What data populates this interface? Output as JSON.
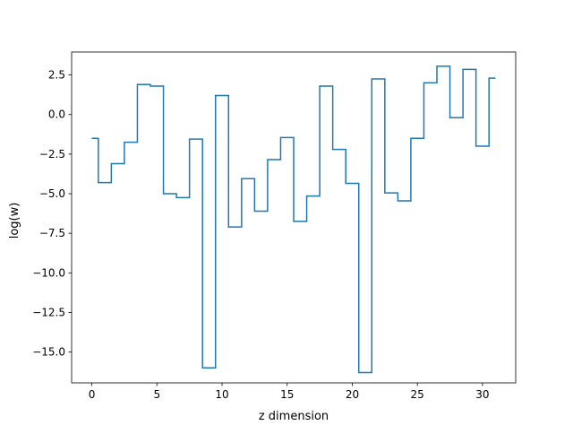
{
  "chart_data": {
    "type": "line",
    "drawstyle": "steps-mid",
    "title": "",
    "xlabel": "z dimension",
    "ylabel": "log(w)",
    "xlim": [
      -1.55,
      32.55
    ],
    "ylim": [
      -16.95,
      3.95
    ],
    "grid": false,
    "x_ticks": [
      0,
      5,
      10,
      15,
      20,
      25,
      30
    ],
    "y_ticks": [
      2.5,
      0.0,
      -2.5,
      -5.0,
      -7.5,
      -10.0,
      -12.5,
      -15.0
    ],
    "y_tick_labels": [
      "2.5",
      "0.0",
      "−2.5",
      "−5.0",
      "−7.5",
      "−10.0",
      "−12.5",
      "−15.0"
    ],
    "line_color": "#1f77b4",
    "x": [
      0,
      1,
      2,
      3,
      4,
      5,
      6,
      7,
      8,
      9,
      10,
      11,
      12,
      13,
      14,
      15,
      16,
      17,
      18,
      19,
      20,
      21,
      22,
      23,
      24,
      25,
      26,
      27,
      28,
      29,
      30,
      31
    ],
    "y": [
      -1.5,
      -4.3,
      -3.1,
      -1.75,
      1.9,
      1.8,
      -5.0,
      -5.25,
      -1.55,
      -16.0,
      1.2,
      -7.1,
      -4.05,
      -6.1,
      -2.85,
      -1.45,
      -6.75,
      -5.15,
      1.8,
      -2.2,
      -4.35,
      -16.3,
      2.25,
      -4.95,
      -5.45,
      -1.5,
      2.0,
      3.05,
      -0.2,
      2.85,
      -2.0,
      2.3
    ]
  }
}
